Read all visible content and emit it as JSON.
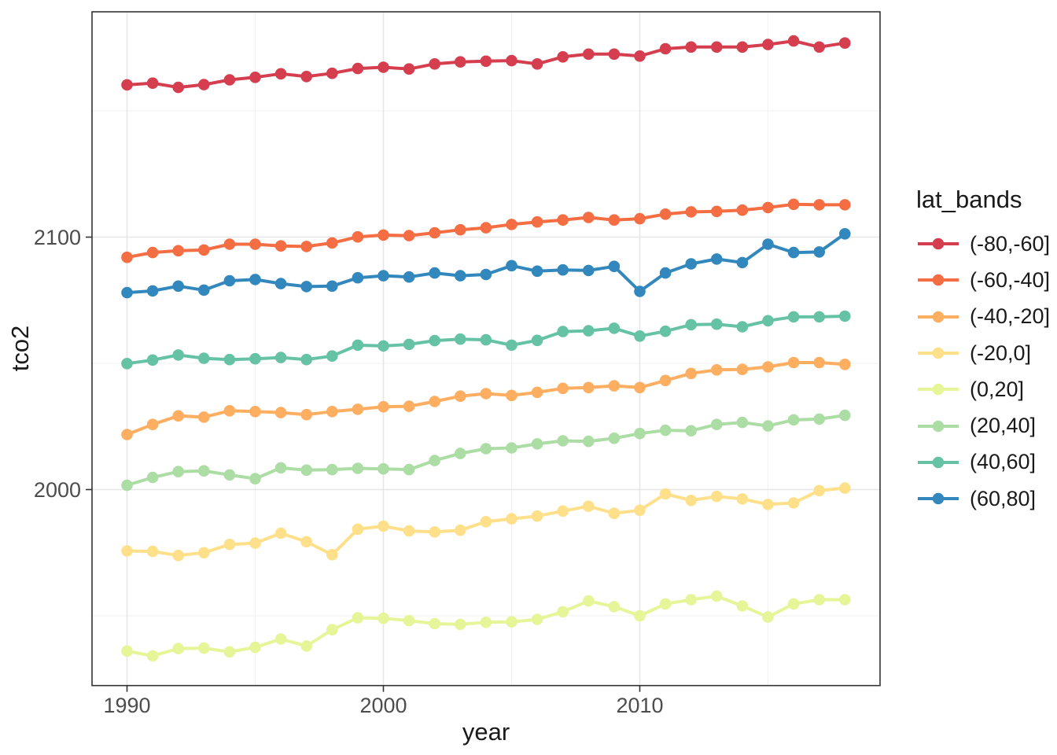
{
  "chart_data": {
    "type": "line",
    "title": "",
    "xlabel": "year",
    "ylabel": "tco2",
    "legend_title": "lat_bands",
    "legend_position": "right",
    "grid": true,
    "x_ticks": [
      1990,
      2000,
      2010
    ],
    "y_ticks": [
      2000,
      2100
    ],
    "x_minor_ticks": [
      1995,
      2005,
      2015
    ],
    "y_minor_ticks": [
      1950,
      2050,
      2150
    ],
    "xlim": [
      1988.6,
      2019.4
    ],
    "ylim": [
      1922,
      2189
    ],
    "x": [
      1990,
      1991,
      1992,
      1993,
      1994,
      1995,
      1996,
      1997,
      1998,
      1999,
      2000,
      2001,
      2002,
      2003,
      2004,
      2005,
      2006,
      2007,
      2008,
      2009,
      2010,
      2011,
      2012,
      2013,
      2014,
      2015,
      2016,
      2017,
      2018
    ],
    "series": [
      {
        "name": "(-80,-60]",
        "color": "#d53e4f",
        "values": [
          2160.3,
          2161.0,
          2159.3,
          2160.4,
          2162.3,
          2163.3,
          2164.7,
          2163.6,
          2164.9,
          2166.8,
          2167.3,
          2166.6,
          2168.6,
          2169.4,
          2169.7,
          2169.9,
          2168.6,
          2171.4,
          2172.5,
          2172.5,
          2171.7,
          2174.6,
          2175.3,
          2175.3,
          2175.3,
          2176.3,
          2177.7,
          2175.3,
          2176.9
        ]
      },
      {
        "name": "(-60,-40]",
        "color": "#f46d43",
        "values": [
          2092.0,
          2093.9,
          2094.6,
          2094.9,
          2097.2,
          2097.2,
          2096.5,
          2096.3,
          2097.7,
          2100.1,
          2100.8,
          2100.6,
          2101.7,
          2102.9,
          2103.7,
          2105.0,
          2106.0,
          2106.8,
          2107.8,
          2106.8,
          2107.3,
          2109.1,
          2110.0,
          2110.2,
          2110.7,
          2111.7,
          2113.0,
          2112.8,
          2112.8
        ]
      },
      {
        "name": "(-40,-20]",
        "color": "#fdae61",
        "values": [
          2021.8,
          2025.8,
          2029.2,
          2028.7,
          2031.2,
          2030.9,
          2030.5,
          2029.7,
          2030.9,
          2031.8,
          2032.8,
          2033.0,
          2034.9,
          2037.0,
          2038.0,
          2037.3,
          2038.5,
          2040.1,
          2040.4,
          2041.1,
          2040.4,
          2043.2,
          2046.0,
          2047.4,
          2047.6,
          2048.6,
          2050.3,
          2050.3,
          2049.6
        ]
      },
      {
        "name": "(-20,0]",
        "color": "#fee08b",
        "values": [
          1975.7,
          1975.5,
          1973.9,
          1975.0,
          1978.3,
          1978.8,
          1982.7,
          1979.3,
          1974.2,
          1984.3,
          1985.5,
          1983.6,
          1983.2,
          1983.9,
          1987.3,
          1988.4,
          1989.5,
          1991.5,
          1993.4,
          1990.6,
          1991.8,
          1998.3,
          1995.7,
          1997.3,
          1996.3,
          1994.1,
          1994.7,
          1999.6,
          2000.6
        ]
      },
      {
        "name": "(0,20]",
        "color": "#e6f598",
        "values": [
          1936.0,
          1934.1,
          1937.0,
          1937.2,
          1935.7,
          1937.5,
          1940.8,
          1938.0,
          1944.5,
          1949.2,
          1949.0,
          1948.1,
          1946.9,
          1946.6,
          1947.4,
          1947.6,
          1948.6,
          1951.6,
          1955.9,
          1953.6,
          1950.0,
          1954.7,
          1956.4,
          1957.8,
          1953.9,
          1949.5,
          1954.7,
          1956.4,
          1956.4
        ]
      },
      {
        "name": "(20,40]",
        "color": "#abdda4",
        "values": [
          2001.7,
          2004.8,
          2007.1,
          2007.4,
          2005.8,
          2004.3,
          2008.6,
          2007.7,
          2007.9,
          2008.4,
          2008.2,
          2007.9,
          2011.5,
          2014.3,
          2016.2,
          2016.5,
          2018.1,
          2019.3,
          2019.1,
          2020.3,
          2022.2,
          2023.5,
          2023.3,
          2025.8,
          2026.6,
          2025.2,
          2027.6,
          2027.9,
          2029.4
        ]
      },
      {
        "name": "(40,60]",
        "color": "#66c2a5",
        "values": [
          2049.9,
          2051.3,
          2053.3,
          2052.0,
          2051.5,
          2051.8,
          2052.3,
          2051.5,
          2052.9,
          2057.2,
          2056.9,
          2057.5,
          2059.0,
          2059.6,
          2059.3,
          2057.2,
          2059.1,
          2062.6,
          2062.9,
          2063.9,
          2060.8,
          2062.7,
          2065.3,
          2065.5,
          2064.5,
          2066.9,
          2068.4,
          2068.4,
          2068.7
        ]
      },
      {
        "name": "(60,80]",
        "color": "#3288bd",
        "values": [
          2078.0,
          2078.7,
          2080.6,
          2079.0,
          2082.7,
          2083.2,
          2081.6,
          2080.4,
          2080.6,
          2083.9,
          2084.7,
          2084.2,
          2085.8,
          2084.7,
          2085.2,
          2088.7,
          2086.5,
          2087.0,
          2086.8,
          2088.4,
          2078.5,
          2085.8,
          2089.4,
          2091.3,
          2089.9,
          2097.2,
          2093.9,
          2094.1,
          2101.3
        ]
      }
    ],
    "style": {
      "panel_border_color": "#333333",
      "grid_major_color": "#e6e6e6",
      "grid_minor_color": "#f1f1f1",
      "tick_label_color": "#4d4d4d",
      "axis_title_color": "#1a1a1a"
    }
  },
  "legend": {
    "title": "lat_bands"
  }
}
